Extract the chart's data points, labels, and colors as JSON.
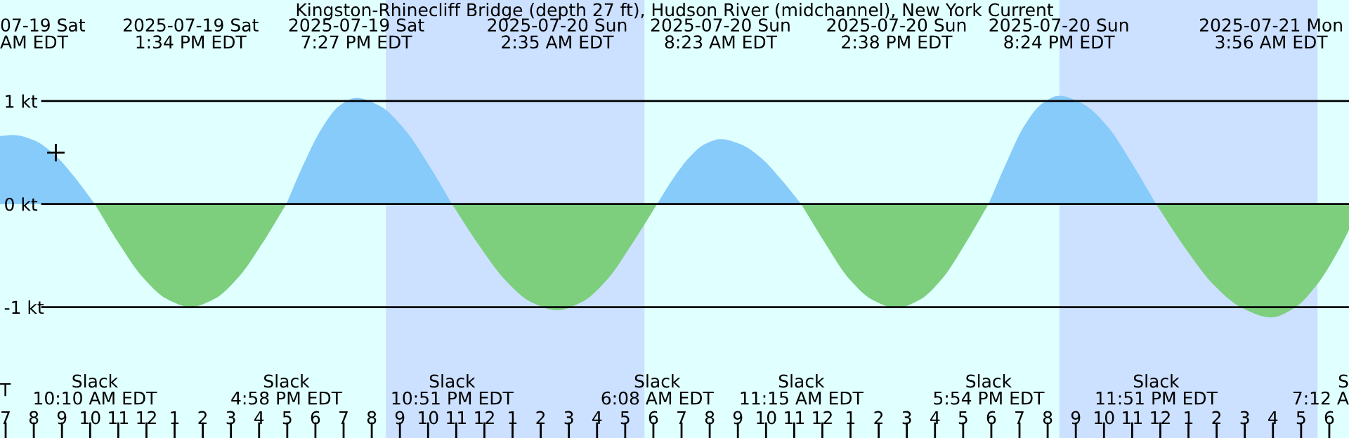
{
  "chart_data": {
    "type": "area",
    "title": "Kingston-Rhinecliff Bridge (depth 27 ft), Hudson River (midchannel), New York Current",
    "x": [
      "2025-07-19T06:48",
      "2025-07-19T07:17",
      "2025-07-19T08:00",
      "2025-07-19T08:44",
      "2025-07-19T09:27",
      "2025-07-19T10:10",
      "2025-07-19T11:01",
      "2025-07-19T11:52",
      "2025-07-19T12:43",
      "2025-07-19T13:34",
      "2025-07-19T14:25",
      "2025-07-19T15:16",
      "2025-07-19T16:07",
      "2025-07-19T16:58",
      "2025-07-19T17:35",
      "2025-07-19T18:13",
      "2025-07-19T18:50",
      "2025-07-19T19:27",
      "2025-07-19T20:18",
      "2025-07-19T21:09",
      "2025-07-19T22:00",
      "2025-07-19T22:51",
      "2025-07-19T23:47",
      "2025-07-20T00:43",
      "2025-07-20T01:39",
      "2025-07-20T02:35",
      "2025-07-20T03:28",
      "2025-07-20T04:22",
      "2025-07-20T05:14",
      "2025-07-20T06:08",
      "2025-07-20T06:41",
      "2025-07-20T07:16",
      "2025-07-20T07:49",
      "2025-07-20T08:23",
      "2025-07-20T09:06",
      "2025-07-20T09:49",
      "2025-07-20T10:32",
      "2025-07-20T11:15",
      "2025-07-20T12:06",
      "2025-07-20T12:56",
      "2025-07-20T13:47",
      "2025-07-20T14:38",
      "2025-07-20T15:27",
      "2025-07-20T16:16",
      "2025-07-20T17:05",
      "2025-07-20T17:54",
      "2025-07-20T18:32",
      "2025-07-20T19:09",
      "2025-07-20T19:47",
      "2025-07-20T20:24",
      "2025-07-20T21:16",
      "2025-07-20T22:08",
      "2025-07-20T22:59",
      "2025-07-20T23:51",
      "2025-07-21T00:52",
      "2025-07-21T01:53",
      "2025-07-21T02:55",
      "2025-07-21T03:56",
      "2025-07-21T04:45",
      "2025-07-21T05:34",
      "2025-07-21T06:23",
      "2025-07-21T06:42"
    ],
    "series": [
      {
        "color": "#87cbfa",
        "values": [
          0.66,
          0.67,
          0.62,
          0.48,
          0.26,
          0,
          null,
          null,
          null,
          null,
          null,
          null,
          null,
          0,
          0.39,
          0.73,
          0.95,
          1.03,
          0.95,
          0.73,
          0.39,
          0,
          null,
          null,
          null,
          null,
          null,
          null,
          null,
          0,
          0.24,
          0.45,
          0.58,
          0.63,
          0.58,
          0.45,
          0.24,
          0,
          null,
          null,
          null,
          null,
          null,
          null,
          null,
          0,
          0.4,
          0.75,
          0.97,
          1.05,
          0.97,
          0.75,
          0.4,
          0,
          null,
          null,
          null,
          null,
          null,
          null,
          null,
          null
        ]
      },
      {
        "color": "#7dcf7d",
        "values": [
          null,
          null,
          null,
          null,
          null,
          0,
          -0.38,
          -0.71,
          -0.92,
          -1.0,
          -0.92,
          -0.71,
          -0.38,
          0,
          null,
          null,
          null,
          null,
          null,
          null,
          null,
          0,
          -0.39,
          -0.73,
          -0.95,
          -1.03,
          -0.95,
          -0.73,
          -0.39,
          0,
          null,
          null,
          null,
          null,
          null,
          null,
          null,
          0,
          -0.38,
          -0.72,
          -0.93,
          -1.01,
          -0.93,
          -0.72,
          -0.38,
          0,
          null,
          null,
          null,
          null,
          null,
          null,
          null,
          0,
          -0.42,
          -0.78,
          -1.01,
          -1.1,
          -1.01,
          -0.78,
          -0.42,
          -0.25
        ]
      },
      {
        "type": "scatter",
        "marker": "cross",
        "color": "#000000",
        "x": [
          "2025-07-19T08:47"
        ],
        "values": [
          0.5
        ]
      }
    ],
    "bands": [
      {
        "axis": "x",
        "from": "2025-07-19T20:30",
        "to": "2025-07-20T05:41",
        "color": "#cce0ff"
      },
      {
        "axis": "x",
        "from": "2025-07-20T20:25",
        "to": "2025-07-21T05:35",
        "color": "#cce0ff"
      }
    ],
    "annotations": [
      "07-19 Sat\nAM EDT",
      "2025-07-19 Sat\n1:34 PM EDT",
      "2025-07-19 Sat\n7:27 PM EDT",
      "2025-07-20 Sun\n2:35 AM EDT",
      "2025-07-20 Sun\n8:23 AM EDT",
      "2025-07-20 Sun\n2:38 PM EDT",
      "2025-07-20 Sun\n8:24 PM EDT",
      "2025-07-21 Mon\n3:56 AM EDT",
      "T",
      "Slack\n10:10 AM EDT",
      "Slack\n4:58 PM EDT",
      "Slack\n10:51 PM EDT",
      "Slack\n6:08 AM EDT",
      "Slack\n11:15 AM EDT",
      "Slack\n5:54 PM EDT",
      "Slack\n11:51 PM EDT",
      "S\n7:12 A"
    ],
    "xlim": [
      "2025-07-19T06:48",
      "2025-07-21T06:42"
    ],
    "xticks": [
      {
        "value": "2025-07-19T07:00",
        "label": "7"
      },
      {
        "value": "2025-07-19T08:00",
        "label": "8"
      },
      {
        "value": "2025-07-19T09:00",
        "label": "9"
      },
      {
        "value": "2025-07-19T10:00",
        "label": "10"
      },
      {
        "value": "2025-07-19T11:00",
        "label": "11"
      },
      {
        "value": "2025-07-19T12:00",
        "label": "12"
      },
      {
        "value": "2025-07-19T13:00",
        "label": "1"
      },
      {
        "value": "2025-07-19T14:00",
        "label": "2"
      },
      {
        "value": "2025-07-19T15:00",
        "label": "3"
      },
      {
        "value": "2025-07-19T16:00",
        "label": "4"
      },
      {
        "value": "2025-07-19T17:00",
        "label": "5"
      },
      {
        "value": "2025-07-19T18:00",
        "label": "6"
      },
      {
        "value": "2025-07-19T19:00",
        "label": "7"
      },
      {
        "value": "2025-07-19T20:00",
        "label": "8"
      },
      {
        "value": "2025-07-19T21:00",
        "label": "9"
      },
      {
        "value": "2025-07-19T22:00",
        "label": "10"
      },
      {
        "value": "2025-07-19T23:00",
        "label": "11"
      },
      {
        "value": "2025-07-20T00:00",
        "label": "12"
      },
      {
        "value": "2025-07-20T01:00",
        "label": "1"
      },
      {
        "value": "2025-07-20T02:00",
        "label": "2"
      },
      {
        "value": "2025-07-20T03:00",
        "label": "3"
      },
      {
        "value": "2025-07-20T04:00",
        "label": "4"
      },
      {
        "value": "2025-07-20T05:00",
        "label": "5"
      },
      {
        "value": "2025-07-20T06:00",
        "label": "6"
      },
      {
        "value": "2025-07-20T07:00",
        "label": "7"
      },
      {
        "value": "2025-07-20T08:00",
        "label": "8"
      },
      {
        "value": "2025-07-20T09:00",
        "label": "9"
      },
      {
        "value": "2025-07-20T10:00",
        "label": "10"
      },
      {
        "value": "2025-07-20T11:00",
        "label": "11"
      },
      {
        "value": "2025-07-20T12:00",
        "label": "12"
      },
      {
        "value": "2025-07-20T13:00",
        "label": "1"
      },
      {
        "value": "2025-07-20T14:00",
        "label": "2"
      },
      {
        "value": "2025-07-20T15:00",
        "label": "3"
      },
      {
        "value": "2025-07-20T16:00",
        "label": "4"
      },
      {
        "value": "2025-07-20T17:00",
        "label": "5"
      },
      {
        "value": "2025-07-20T18:00",
        "label": "6"
      },
      {
        "value": "2025-07-20T19:00",
        "label": "7"
      },
      {
        "value": "2025-07-20T20:00",
        "label": "8"
      },
      {
        "value": "2025-07-20T21:00",
        "label": "9"
      },
      {
        "value": "2025-07-20T22:00",
        "label": "10"
      },
      {
        "value": "2025-07-20T23:00",
        "label": "11"
      },
      {
        "value": "2025-07-21T00:00",
        "label": "12"
      },
      {
        "value": "2025-07-21T01:00",
        "label": "1"
      },
      {
        "value": "2025-07-21T02:00",
        "label": "2"
      },
      {
        "value": "2025-07-21T03:00",
        "label": "3"
      },
      {
        "value": "2025-07-21T04:00",
        "label": "4"
      },
      {
        "value": "2025-07-21T05:00",
        "label": "5"
      },
      {
        "value": "2025-07-21T06:00",
        "label": "6"
      }
    ],
    "ylim": [
      -2.27,
      1.98
    ],
    "yticks": [
      {
        "value": 1,
        "label": "1 kt"
      },
      {
        "value": 0,
        "label": "0 kt"
      },
      {
        "value": -1,
        "label": "-1 kt"
      }
    ],
    "grid": "y"
  }
}
